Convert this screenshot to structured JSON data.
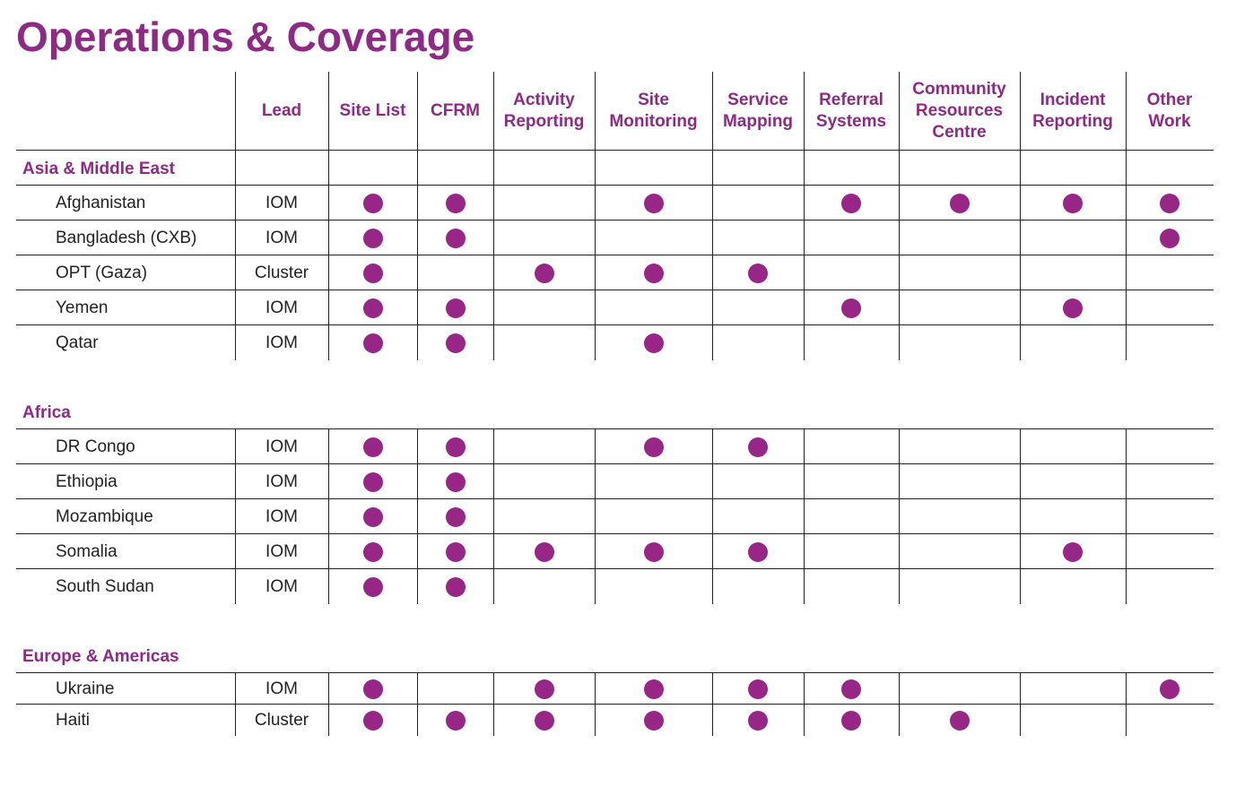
{
  "title": "Operations & Coverage",
  "colors": {
    "accent": "#8e2a85",
    "dot": "#982686",
    "text": "#222222"
  },
  "columns": [
    "Lead",
    "Site List",
    "CFRM",
    "Activity\nReporting",
    "Site\nMonitoring",
    "Service\nMapping",
    "Referral\nSystems",
    "Community\nResources\nCentre",
    "Incident\nReporting",
    "Other\nWork"
  ],
  "regions": [
    {
      "name": "Asia & Middle East",
      "rows": [
        {
          "country": "Afghanistan",
          "lead": "IOM",
          "coverage": [
            1,
            1,
            0,
            1,
            0,
            1,
            1,
            1,
            1
          ]
        },
        {
          "country": "Bangladesh (CXB)",
          "lead": "IOM",
          "coverage": [
            1,
            1,
            0,
            0,
            0,
            0,
            0,
            0,
            1
          ]
        },
        {
          "country": "OPT (Gaza)",
          "lead": "Cluster",
          "coverage": [
            1,
            0,
            1,
            1,
            1,
            0,
            0,
            0,
            0
          ]
        },
        {
          "country": "Yemen",
          "lead": "IOM",
          "coverage": [
            1,
            1,
            0,
            0,
            0,
            1,
            0,
            1,
            0
          ]
        },
        {
          "country": "Qatar",
          "lead": "IOM",
          "coverage": [
            1,
            1,
            0,
            1,
            0,
            0,
            0,
            0,
            0
          ]
        }
      ]
    },
    {
      "name": "Africa",
      "rows": [
        {
          "country": "DR Congo",
          "lead": "IOM",
          "coverage": [
            1,
            1,
            0,
            1,
            1,
            0,
            0,
            0,
            0
          ]
        },
        {
          "country": "Ethiopia",
          "lead": "IOM",
          "coverage": [
            1,
            1,
            0,
            0,
            0,
            0,
            0,
            0,
            0
          ]
        },
        {
          "country": "Mozambique",
          "lead": "IOM",
          "coverage": [
            1,
            1,
            0,
            0,
            0,
            0,
            0,
            0,
            0
          ]
        },
        {
          "country": "Somalia",
          "lead": "IOM",
          "coverage": [
            1,
            1,
            1,
            1,
            1,
            0,
            0,
            1,
            0
          ]
        },
        {
          "country": "South Sudan",
          "lead": "IOM",
          "coverage": [
            1,
            1,
            0,
            0,
            0,
            0,
            0,
            0,
            0
          ]
        }
      ]
    },
    {
      "name": "Europe & Americas",
      "rows": [
        {
          "country": "Ukraine",
          "lead": "IOM",
          "coverage": [
            1,
            0,
            1,
            1,
            1,
            1,
            0,
            0,
            1
          ]
        },
        {
          "country": "Haiti",
          "lead": "Cluster",
          "coverage": [
            1,
            1,
            1,
            1,
            1,
            1,
            1,
            0,
            0
          ]
        }
      ]
    }
  ]
}
